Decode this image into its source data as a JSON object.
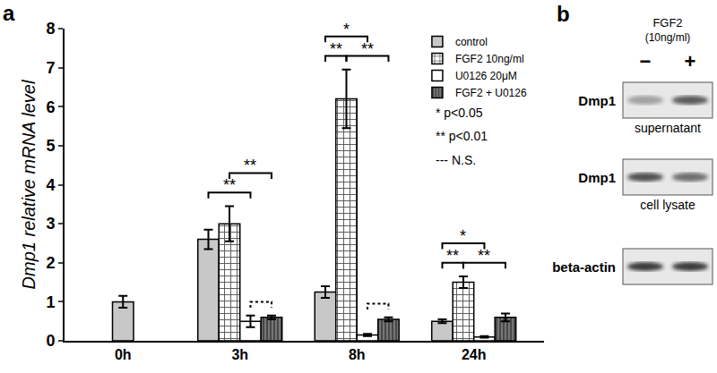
{
  "chart_data": {
    "type": "bar",
    "title": "a",
    "y_label": "Dmp1 relative mRNA level",
    "categories": [
      "0h",
      "3h",
      "8h",
      "24h"
    ],
    "ylim": [
      0,
      8
    ],
    "yticks": [
      0,
      1,
      2,
      3,
      4,
      5,
      6,
      7,
      8
    ],
    "grid": false,
    "legend": "upper right",
    "series": [
      {
        "name": "control",
        "color": "#c8c8c8",
        "marker": "solid",
        "values": [
          1.0,
          2.6,
          1.25,
          0.5
        ],
        "errors": [
          0.15,
          0.25,
          0.15,
          0.05
        ]
      },
      {
        "name": "FGF2 10ng/ml",
        "color": "#ffffff",
        "marker": "grid",
        "values": [
          null,
          3.0,
          6.2,
          1.5
        ],
        "errors": [
          null,
          0.45,
          0.75,
          0.15
        ]
      },
      {
        "name": "U0126 20μM",
        "color": "#ffffff",
        "marker": "solid",
        "values": [
          null,
          0.5,
          0.15,
          0.1
        ],
        "errors": [
          null,
          0.15,
          0.03,
          0.02
        ]
      },
      {
        "name": "FGF2 + U0126",
        "color": "#777777",
        "marker": "stripes",
        "values": [
          null,
          0.6,
          0.55,
          0.6
        ],
        "errors": [
          null,
          0.05,
          0.05,
          0.1
        ]
      }
    ],
    "comparisons": [
      {
        "category": "3h",
        "from": "control",
        "to": "U0126 20μM",
        "label": "**",
        "line_style": "solid"
      },
      {
        "category": "3h",
        "from": "FGF2 10ng/ml",
        "to": "FGF2 + U0126",
        "label": "**",
        "line_style": "solid"
      },
      {
        "category": "3h",
        "from": "U0126 20μM",
        "to": "FGF2 + U0126",
        "line_style": "dotted"
      },
      {
        "category": "8h",
        "from": "control",
        "to": "FGF2 10ng/ml",
        "label": "**",
        "line_style": "solid"
      },
      {
        "category": "8h",
        "from": "FGF2 10ng/ml",
        "to": "FGF2 + U0126",
        "label": "**",
        "line_style": "solid"
      },
      {
        "category": "8h",
        "from": "control",
        "to": "U0126 20μM",
        "label": "*",
        "line_style": "solid"
      },
      {
        "category": "8h",
        "from": "U0126 20μM",
        "to": "FGF2 + U0126",
        "line_style": "dotted"
      },
      {
        "category": "24h",
        "from": "control",
        "to": "FGF2 10ng/ml",
        "label": "**",
        "line_style": "solid"
      },
      {
        "category": "24h",
        "from": "FGF2 10ng/ml",
        "to": "FGF2 + U0126",
        "label": "**",
        "line_style": "solid"
      },
      {
        "category": "24h",
        "from": "control",
        "to": "U0126 20μM",
        "label": "*",
        "line_style": "solid"
      }
    ],
    "notes": [
      "* p<0.05",
      "** p<0.01",
      "--- N.S."
    ]
  },
  "blot": {
    "label": "b",
    "treatment": "FGF2",
    "dose": "(10ng/ml)",
    "lanes": [
      "−",
      "+"
    ],
    "rows": [
      {
        "name": "Dmp1",
        "caption": "supernatant"
      },
      {
        "name": "Dmp1",
        "caption": "cell lysate"
      },
      {
        "name": "beta-actin"
      }
    ]
  }
}
